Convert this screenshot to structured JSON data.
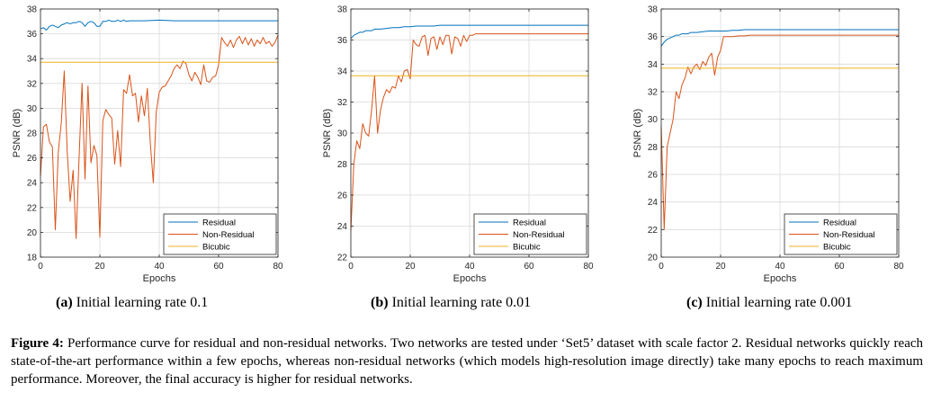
{
  "colors": {
    "residual": "#0072bd",
    "non_residual": "#d95319",
    "bicubic": "#edb120",
    "grid": "#d9d9d9",
    "axis": "#262626"
  },
  "chart_data": [
    {
      "type": "line",
      "xlabel": "Epochs",
      "ylabel": "PSNR (dB)",
      "xlim": [
        0,
        80
      ],
      "ylim": [
        18,
        38
      ],
      "xticks": [
        "0",
        "20",
        "40",
        "60",
        "80"
      ],
      "yticks": [
        "18",
        "20",
        "22",
        "24",
        "26",
        "28",
        "30",
        "32",
        "34",
        "36",
        "38"
      ],
      "grid": true,
      "legend_placement": "bottom-right",
      "series": [
        {
          "name": "Residual",
          "x": [
            0,
            1,
            2,
            3,
            4,
            5,
            6,
            7,
            8,
            9,
            10,
            11,
            12,
            13,
            14,
            15,
            16,
            17,
            18,
            19,
            20,
            21,
            22,
            23,
            24,
            25,
            26,
            27,
            28,
            29,
            30,
            35,
            40,
            45,
            50,
            55,
            60,
            65,
            70,
            75,
            80
          ],
          "y": [
            36.4,
            36.5,
            36.3,
            36.6,
            36.7,
            36.6,
            36.5,
            36.7,
            36.8,
            36.9,
            36.8,
            36.9,
            36.9,
            37.0,
            36.9,
            36.6,
            36.9,
            37.0,
            36.9,
            36.6,
            36.6,
            37.0,
            37.0,
            37.1,
            37.0,
            37.0,
            37.1,
            37.0,
            37.1,
            37.0,
            37.05,
            37.05,
            37.1,
            37.05,
            37.05,
            37.05,
            37.05,
            37.05,
            37.05,
            37.05,
            37.05
          ]
        },
        {
          "name": "Non-Residual",
          "x": [
            0,
            1,
            2,
            3,
            4,
            5,
            6,
            7,
            8,
            9,
            10,
            11,
            12,
            13,
            14,
            15,
            16,
            17,
            18,
            19,
            20,
            21,
            22,
            23,
            24,
            25,
            26,
            27,
            28,
            29,
            30,
            31,
            32,
            33,
            34,
            35,
            36,
            37,
            38,
            39,
            40,
            41,
            42,
            43,
            44,
            45,
            46,
            47,
            48,
            49,
            50,
            51,
            52,
            53,
            54,
            55,
            56,
            57,
            58,
            59,
            60,
            61,
            62,
            63,
            64,
            65,
            66,
            67,
            68,
            69,
            70,
            71,
            72,
            73,
            74,
            75,
            76,
            77,
            78,
            79,
            80
          ],
          "y": [
            24.5,
            28.5,
            28.7,
            27.3,
            26.9,
            20.2,
            26.5,
            28.8,
            33.0,
            26.5,
            22.5,
            25.0,
            19.5,
            26.0,
            32.0,
            24.3,
            31.8,
            25.6,
            27.0,
            26.2,
            19.6,
            29.0,
            29.9,
            29.5,
            29.2,
            25.5,
            28.2,
            25.3,
            31.5,
            31.2,
            32.7,
            31.0,
            31.2,
            28.9,
            31.0,
            29.4,
            31.6,
            27.2,
            24.0,
            29.7,
            31.3,
            31.7,
            31.8,
            32.2,
            32.6,
            33.2,
            33.5,
            33.2,
            33.8,
            33.6,
            32.7,
            32.2,
            32.9,
            32.5,
            31.9,
            33.5,
            32.2,
            32.1,
            32.5,
            32.6,
            33.5,
            35.7,
            35.3,
            35.0,
            35.5,
            34.9,
            35.5,
            35.8,
            35.2,
            35.7,
            35.1,
            35.6,
            35.0,
            35.5,
            35.2,
            35.7,
            35.2,
            35.4,
            35.0,
            35.3,
            35.9
          ]
        },
        {
          "name": "Bicubic",
          "x": [
            0,
            80
          ],
          "y": [
            33.7,
            33.7
          ]
        }
      ]
    },
    {
      "type": "line",
      "xlabel": "Epochs",
      "ylabel": "PSNR (dB)",
      "xlim": [
        0,
        80
      ],
      "ylim": [
        22,
        38
      ],
      "xticks": [
        "0",
        "20",
        "40",
        "60",
        "80"
      ],
      "yticks": [
        "22",
        "24",
        "26",
        "28",
        "30",
        "32",
        "34",
        "36",
        "38"
      ],
      "grid": true,
      "legend_placement": "bottom-right",
      "series": [
        {
          "name": "Residual",
          "x": [
            0,
            1,
            2,
            3,
            4,
            5,
            6,
            7,
            8,
            9,
            10,
            12,
            14,
            16,
            18,
            20,
            22,
            24,
            26,
            28,
            30,
            35,
            40,
            45,
            50,
            60,
            70,
            80
          ],
          "y": [
            36.1,
            36.3,
            36.4,
            36.5,
            36.5,
            36.6,
            36.6,
            36.6,
            36.7,
            36.7,
            36.7,
            36.75,
            36.8,
            36.8,
            36.85,
            36.85,
            36.9,
            36.9,
            36.9,
            36.9,
            36.95,
            36.95,
            36.95,
            36.95,
            36.95,
            36.95,
            36.95,
            36.95
          ]
        },
        {
          "name": "Non-Residual",
          "x": [
            0,
            1,
            2,
            3,
            4,
            5,
            6,
            7,
            8,
            9,
            10,
            11,
            12,
            13,
            14,
            15,
            16,
            17,
            18,
            19,
            20,
            21,
            22,
            23,
            24,
            25,
            26,
            27,
            28,
            29,
            30,
            31,
            32,
            33,
            34,
            35,
            36,
            37,
            38,
            39,
            40,
            41,
            42,
            44,
            46,
            50,
            55,
            60,
            70,
            80
          ],
          "y": [
            23.7,
            28.0,
            29.5,
            29.0,
            30.6,
            30.0,
            29.8,
            31.5,
            33.7,
            30.0,
            31.5,
            32.3,
            32.8,
            32.6,
            33.0,
            32.9,
            33.7,
            33.3,
            34.0,
            34.1,
            33.5,
            36.0,
            35.7,
            35.6,
            36.2,
            36.3,
            35.0,
            36.1,
            36.2,
            35.4,
            36.2,
            35.7,
            36.3,
            36.3,
            35.1,
            36.2,
            36.1,
            35.6,
            36.3,
            35.9,
            36.3,
            36.3,
            36.4,
            36.4,
            36.4,
            36.4,
            36.4,
            36.4,
            36.4,
            36.4
          ]
        },
        {
          "name": "Bicubic",
          "x": [
            0,
            80
          ],
          "y": [
            33.7,
            33.7
          ]
        }
      ]
    },
    {
      "type": "line",
      "xlabel": "Epochs",
      "ylabel": "PSNR (dB)",
      "xlim": [
        0,
        80
      ],
      "ylim": [
        20,
        38
      ],
      "xticks": [
        "0",
        "20",
        "40",
        "60",
        "80"
      ],
      "yticks": [
        "20",
        "22",
        "24",
        "26",
        "28",
        "30",
        "32",
        "34",
        "36",
        "38"
      ],
      "grid": true,
      "legend_placement": "bottom-right",
      "series": [
        {
          "name": "Residual",
          "x": [
            0,
            1,
            2,
            3,
            4,
            5,
            6,
            7,
            8,
            9,
            10,
            12,
            14,
            16,
            18,
            20,
            22,
            24,
            26,
            28,
            30,
            35,
            40,
            50,
            60,
            70,
            80
          ],
          "y": [
            35.3,
            35.6,
            35.8,
            35.9,
            36.0,
            36.1,
            36.1,
            36.2,
            36.2,
            36.2,
            36.3,
            36.3,
            36.35,
            36.4,
            36.4,
            36.4,
            36.4,
            36.45,
            36.45,
            36.5,
            36.5,
            36.5,
            36.5,
            36.5,
            36.5,
            36.5,
            36.5
          ]
        },
        {
          "name": "Non-Residual",
          "x": [
            0,
            1,
            2,
            3,
            4,
            5,
            6,
            7,
            8,
            9,
            10,
            11,
            12,
            13,
            14,
            15,
            16,
            17,
            18,
            19,
            20,
            21,
            22,
            24,
            26,
            28,
            30,
            35,
            40,
            50,
            60,
            70,
            80
          ],
          "y": [
            29.5,
            22.0,
            28.0,
            29.0,
            30.0,
            32.0,
            31.5,
            32.5,
            33.0,
            33.8,
            33.3,
            33.8,
            34.0,
            33.6,
            34.2,
            33.9,
            34.5,
            34.8,
            33.2,
            34.5,
            35.0,
            36.0,
            36.0,
            36.0,
            36.05,
            36.05,
            36.1,
            36.1,
            36.1,
            36.1,
            36.1,
            36.1,
            36.1
          ]
        },
        {
          "name": "Bicubic",
          "x": [
            0,
            80
          ],
          "y": [
            33.7,
            33.7
          ]
        }
      ]
    }
  ],
  "legend": {
    "items": [
      "Residual",
      "Non-Residual",
      "Bicubic"
    ]
  },
  "subcaptions": [
    {
      "label": "(a)",
      "text": "Initial learning rate 0.1"
    },
    {
      "label": "(b)",
      "text": "Initial learning rate 0.01"
    },
    {
      "label": "(c)",
      "text": "Initial learning rate 0.001"
    }
  ],
  "caption": {
    "label": "Figure 4:",
    "text": "Performance curve for residual and non-residual networks. Two networks are tested under ‘Set5’ dataset with scale factor 2. Residual networks quickly reach state-of-the-art performance within a few epochs, whereas non-residual networks (which models high-resolution image directly) take many epochs to reach maximum performance. Moreover, the final accuracy is higher for residual networks."
  }
}
